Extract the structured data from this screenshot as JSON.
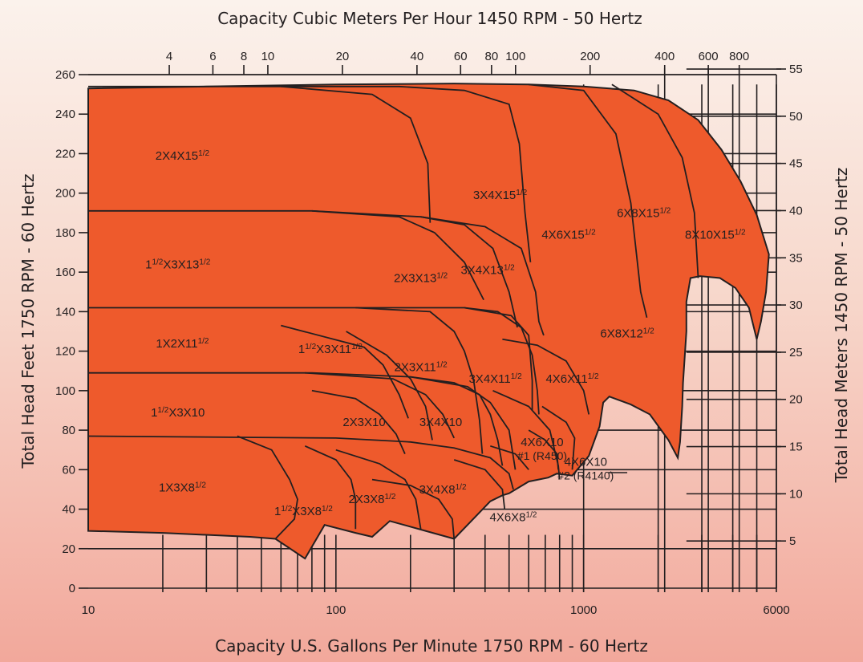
{
  "chart_data": {
    "type": "area",
    "title_top": "Capacity Cubic Meters Per Hour 1450 RPM - 50 Hertz",
    "xlabel": "Capacity U.S. Gallons Per Minute 1750 RPM - 60 Hertz",
    "ylabel": "Total Head Feet 1750 RPM - 60 Hertz",
    "ylabel_right": "Total Head Meters 1450 RPM - 50 Hertz",
    "x_scale": "log",
    "xlim": [
      10,
      6000
    ],
    "ylim": [
      0,
      260
    ],
    "x_ticks": [
      "10",
      "100",
      "1000",
      "6000"
    ],
    "y_ticks": [
      "0",
      "20",
      "40",
      "60",
      "80",
      "100",
      "120",
      "140",
      "160",
      "180",
      "200",
      "220",
      "240",
      "260"
    ],
    "top_ticks": [
      "4",
      "6",
      "8",
      "10",
      "20",
      "40",
      "60",
      "80",
      "100",
      "200",
      "400",
      "600",
      "800"
    ],
    "right_ticks": [
      "5",
      "10",
      "15",
      "20",
      "25",
      "30",
      "35",
      "40",
      "45",
      "50",
      "55"
    ],
    "grid": true,
    "regions": [
      {
        "name": "2X4X15½",
        "label": "2X4X15",
        "frac": "1/2",
        "gpm": 24,
        "ft": 219
      },
      {
        "name": "3X4X15½",
        "label": "3X4X15",
        "frac": "1/2",
        "gpm": 460,
        "ft": 199
      },
      {
        "name": "4X6X15½",
        "label": "4X6X15",
        "frac": "1/2",
        "gpm": 870,
        "ft": 179
      },
      {
        "name": "6X8X15½",
        "label": "6X8X15",
        "frac": "1/2",
        "gpm": 1750,
        "ft": 190
      },
      {
        "name": "8X10X15½",
        "label": "8X10X15",
        "frac": "1/2",
        "gpm": 3400,
        "ft": 179
      },
      {
        "name": "1½X3X13½",
        "label": "X3X13",
        "prefix": "1",
        "prefix_frac": "1/2",
        "frac": "1/2",
        "gpm": 23,
        "ft": 164
      },
      {
        "name": "2X3X13½",
        "label": "2X3X13",
        "frac": "1/2",
        "gpm": 220,
        "ft": 157
      },
      {
        "name": "3X4X13½",
        "label": "3X4X13",
        "frac": "1/2",
        "gpm": 410,
        "ft": 161
      },
      {
        "name": "6X8X12½",
        "label": "6X8X12",
        "frac": "1/2",
        "gpm": 1500,
        "ft": 129
      },
      {
        "name": "1X2X11½",
        "label": "1X2X11",
        "frac": "1/2",
        "gpm": 24,
        "ft": 124
      },
      {
        "name": "1½X3X11½",
        "label": "X3X11",
        "prefix": "1",
        "prefix_frac": "1/2",
        "frac": "1/2",
        "gpm": 95,
        "ft": 121
      },
      {
        "name": "2X3X11½",
        "label": "2X3X11",
        "frac": "1/2",
        "gpm": 220,
        "ft": 112
      },
      {
        "name": "3X4X11½",
        "label": "3X4X11",
        "frac": "1/2",
        "gpm": 440,
        "ft": 106
      },
      {
        "name": "4X6X11½",
        "label": "4X6X11",
        "frac": "1/2",
        "gpm": 900,
        "ft": 106
      },
      {
        "name": "1½X3X10",
        "label": "X3X10",
        "prefix": "1",
        "prefix_frac": "1/2",
        "gpm": 23,
        "ft": 89
      },
      {
        "name": "2X3X10",
        "label": "2X3X10",
        "gpm": 130,
        "ft": 84
      },
      {
        "name": "3X4X10",
        "label": "3X4X10",
        "gpm": 265,
        "ft": 84
      },
      {
        "name": "4X6X10 #1 (R450)",
        "label": "4X6X10",
        "sub": "#1 (R450)",
        "gpm": 680,
        "ft": 74
      },
      {
        "name": "4X6X10 #2 (R4140)",
        "label": "4X6X10",
        "sub": "#2 (R4140)",
        "gpm": 1020,
        "ft": 64
      },
      {
        "name": "1X3X8½",
        "label": "1X3X8",
        "frac": "1/2",
        "gpm": 24,
        "ft": 51
      },
      {
        "name": "1½X3X8½",
        "label": "X3X8",
        "prefix": "1",
        "prefix_frac": "1/2",
        "frac": "1/2",
        "gpm": 74,
        "ft": 39
      },
      {
        "name": "2X3X8½",
        "label": "2X3X8",
        "frac": "1/2",
        "gpm": 140,
        "ft": 45
      },
      {
        "name": "3X4X8½",
        "label": "3X4X8",
        "frac": "1/2",
        "gpm": 270,
        "ft": 50
      },
      {
        "name": "4X6X8½",
        "label": "4X6X8",
        "frac": "1/2",
        "gpm": 520,
        "ft": 36
      }
    ]
  }
}
